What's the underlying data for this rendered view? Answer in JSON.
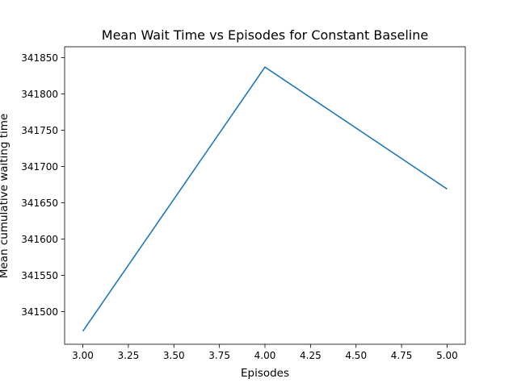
{
  "chart_data": {
    "type": "line",
    "title": "Mean Wait Time vs Episodes for Constant Baseline",
    "xlabel": "Episodes",
    "ylabel": "Mean cumulative waiting time",
    "xlim": [
      2.9,
      5.1
    ],
    "ylim": [
      341455,
      341865
    ],
    "xticks": [
      3.0,
      3.25,
      3.5,
      3.75,
      4.0,
      4.25,
      4.5,
      4.75,
      5.0
    ],
    "xtick_labels": [
      "3.00",
      "3.25",
      "3.50",
      "3.75",
      "4.00",
      "4.25",
      "4.50",
      "4.75",
      "5.00"
    ],
    "yticks": [
      341500,
      341550,
      341600,
      341650,
      341700,
      341750,
      341800,
      341850
    ],
    "ytick_labels": [
      "341500",
      "341550",
      "341600",
      "341650",
      "341700",
      "341750",
      "341800",
      "341850"
    ],
    "grid": false,
    "series": [
      {
        "x": [
          3,
          4,
          5
        ],
        "values": [
          341473,
          341837,
          341669
        ],
        "color": "#1f77b4"
      }
    ]
  }
}
